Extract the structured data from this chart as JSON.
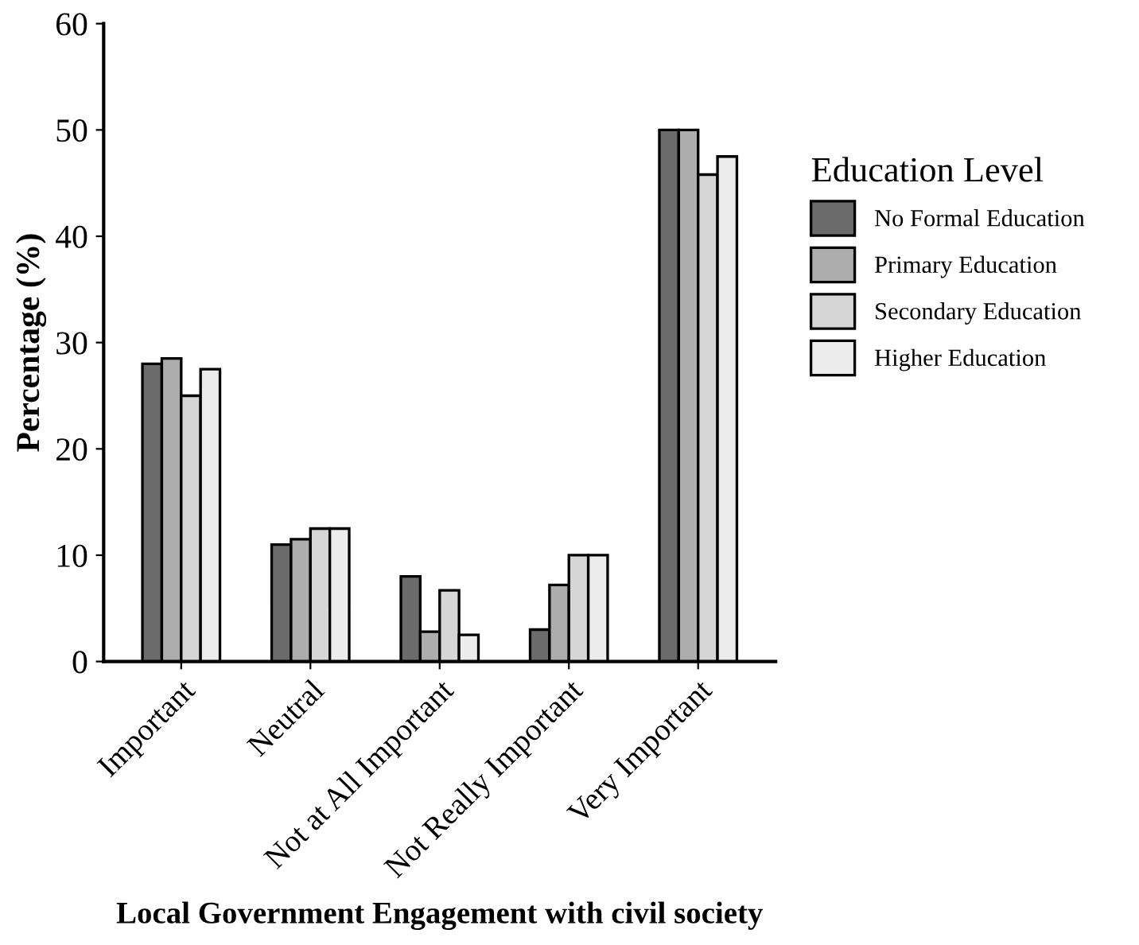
{
  "chart_data": {
    "type": "bar",
    "xlabel": "Local Government Engagement with civil society",
    "ylabel": "Percentage (%)",
    "legend_title": "Education Level",
    "categories": [
      "Important",
      "Neutral",
      "Not at All Important",
      "Not Really Important",
      "Very Important"
    ],
    "series": [
      {
        "name": "No Formal Education",
        "color": "#6b6b6b",
        "values": [
          28,
          11,
          8,
          3,
          50
        ]
      },
      {
        "name": "Primary Education",
        "color": "#adadad",
        "values": [
          28.5,
          11.5,
          2.8,
          7.2,
          50
        ]
      },
      {
        "name": "Secondary Education",
        "color": "#d6d6d6",
        "values": [
          25,
          12.5,
          6.7,
          10,
          45.8
        ]
      },
      {
        "name": "Higher Education",
        "color": "#ececec",
        "values": [
          27.5,
          12.5,
          2.5,
          10,
          47.5
        ]
      }
    ],
    "ylim": [
      0,
      60
    ],
    "yticks": [
      0,
      10,
      20,
      30,
      40,
      50,
      60
    ],
    "grid": false,
    "legend": "right"
  }
}
